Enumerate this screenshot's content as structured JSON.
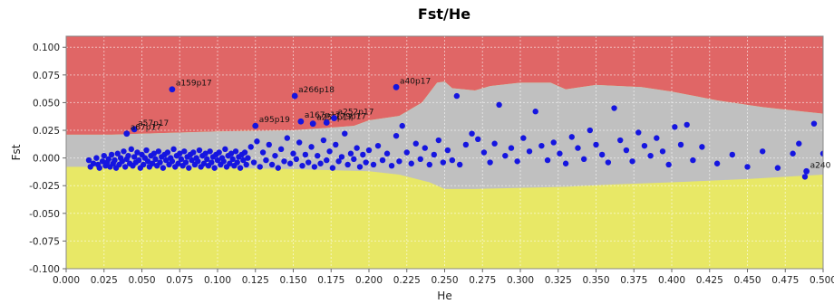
{
  "chart_data": {
    "type": "scatter",
    "title": "Fst/He",
    "xlabel": "He",
    "ylabel": "Fst",
    "xlim": [
      0.0,
      0.5
    ],
    "ylim": [
      -0.1,
      0.11
    ],
    "x_ticks": [
      "0.000",
      "0.025",
      "0.050",
      "0.075",
      "0.100",
      "0.125",
      "0.150",
      "0.175",
      "0.200",
      "0.225",
      "0.250",
      "0.275",
      "0.300",
      "0.325",
      "0.350",
      "0.375",
      "0.400",
      "0.425",
      "0.450",
      "0.475",
      "0.500"
    ],
    "y_ticks": [
      "-0.100",
      "-0.075",
      "-0.050",
      "-0.025",
      "0.000",
      "0.025",
      "0.050",
      "0.075",
      "0.100"
    ],
    "grid": true,
    "colors": {
      "upper_region": "#e06666",
      "neutral_region": "#c0c0c0",
      "lower_region": "#e8e866",
      "points": "#1515e0"
    },
    "upper_boundary": [
      [
        0.0,
        0.021
      ],
      [
        0.03,
        0.021
      ],
      [
        0.05,
        0.022
      ],
      [
        0.1,
        0.024
      ],
      [
        0.15,
        0.025
      ],
      [
        0.17,
        0.027
      ],
      [
        0.19,
        0.029
      ],
      [
        0.2,
        0.034
      ],
      [
        0.22,
        0.038
      ],
      [
        0.235,
        0.05
      ],
      [
        0.245,
        0.068
      ],
      [
        0.25,
        0.069
      ],
      [
        0.255,
        0.063
      ],
      [
        0.27,
        0.061
      ],
      [
        0.28,
        0.065
      ],
      [
        0.3,
        0.068
      ],
      [
        0.32,
        0.068
      ],
      [
        0.33,
        0.062
      ],
      [
        0.35,
        0.066
      ],
      [
        0.38,
        0.064
      ],
      [
        0.4,
        0.06
      ],
      [
        0.43,
        0.052
      ],
      [
        0.46,
        0.046
      ],
      [
        0.5,
        0.04
      ]
    ],
    "lower_boundary": [
      [
        0.0,
        -0.008
      ],
      [
        0.05,
        -0.008
      ],
      [
        0.1,
        -0.009
      ],
      [
        0.15,
        -0.01
      ],
      [
        0.2,
        -0.012
      ],
      [
        0.22,
        -0.015
      ],
      [
        0.24,
        -0.022
      ],
      [
        0.25,
        -0.028
      ],
      [
        0.27,
        -0.028
      ],
      [
        0.3,
        -0.027
      ],
      [
        0.33,
        -0.026
      ],
      [
        0.36,
        -0.024
      ],
      [
        0.4,
        -0.022
      ],
      [
        0.45,
        -0.019
      ],
      [
        0.5,
        -0.015
      ]
    ],
    "labeled_points": [
      {
        "x": 0.07,
        "y": 0.062,
        "label": "a159p17"
      },
      {
        "x": 0.151,
        "y": 0.056,
        "label": "a266p18"
      },
      {
        "x": 0.218,
        "y": 0.064,
        "label": "a40p17"
      },
      {
        "x": 0.045,
        "y": 0.026,
        "label": "a57p17"
      },
      {
        "x": 0.04,
        "y": 0.022,
        "label": "a67p17"
      },
      {
        "x": 0.125,
        "y": 0.029,
        "label": "a95p19"
      },
      {
        "x": 0.155,
        "y": 0.033,
        "label": "a167p17"
      },
      {
        "x": 0.163,
        "y": 0.031,
        "label": "a256p17"
      },
      {
        "x": 0.172,
        "y": 0.032,
        "label": "a179p17"
      },
      {
        "x": 0.177,
        "y": 0.036,
        "label": "a252p17"
      },
      {
        "x": 0.489,
        "y": -0.012,
        "label": "a240"
      }
    ],
    "points": [
      [
        0.015,
        -0.002
      ],
      [
        0.016,
        -0.008
      ],
      [
        0.018,
        -0.005
      ],
      [
        0.02,
        0.0
      ],
      [
        0.021,
        -0.006
      ],
      [
        0.022,
        -0.009
      ],
      [
        0.024,
        -0.003
      ],
      [
        0.025,
        0.002
      ],
      [
        0.026,
        -0.007
      ],
      [
        0.027,
        -0.004
      ],
      [
        0.028,
        -0.001
      ],
      [
        0.029,
        -0.008
      ],
      [
        0.03,
        0.003
      ],
      [
        0.031,
        -0.005
      ],
      [
        0.032,
        -0.002
      ],
      [
        0.033,
        -0.009
      ],
      [
        0.034,
        0.004
      ],
      [
        0.035,
        -0.006
      ],
      [
        0.036,
        0.0
      ],
      [
        0.037,
        -0.003
      ],
      [
        0.038,
        0.006
      ],
      [
        0.039,
        -0.008
      ],
      [
        0.04,
        -0.001
      ],
      [
        0.041,
        0.002
      ],
      [
        0.042,
        -0.005
      ],
      [
        0.043,
        0.008
      ],
      [
        0.044,
        -0.007
      ],
      [
        0.045,
        0.001
      ],
      [
        0.046,
        -0.004
      ],
      [
        0.047,
        0.005
      ],
      [
        0.048,
        -0.002
      ],
      [
        0.049,
        -0.009
      ],
      [
        0.05,
        0.003
      ],
      [
        0.051,
        -0.006
      ],
      [
        0.052,
        0.0
      ],
      [
        0.053,
        0.007
      ],
      [
        0.054,
        -0.003
      ],
      [
        0.055,
        -0.008
      ],
      [
        0.056,
        0.002
      ],
      [
        0.057,
        -0.005
      ],
      [
        0.058,
        0.004
      ],
      [
        0.059,
        -0.001
      ],
      [
        0.06,
        -0.007
      ],
      [
        0.061,
        0.006
      ],
      [
        0.062,
        -0.004
      ],
      [
        0.063,
        0.001
      ],
      [
        0.064,
        -0.009
      ],
      [
        0.065,
        0.003
      ],
      [
        0.066,
        -0.002
      ],
      [
        0.067,
        0.005
      ],
      [
        0.068,
        -0.006
      ],
      [
        0.069,
        0.0
      ],
      [
        0.07,
        -0.003
      ],
      [
        0.071,
        0.008
      ],
      [
        0.072,
        -0.008
      ],
      [
        0.073,
        0.002
      ],
      [
        0.074,
        -0.005
      ],
      [
        0.075,
        0.004
      ],
      [
        0.076,
        -0.001
      ],
      [
        0.077,
        -0.007
      ],
      [
        0.078,
        0.006
      ],
      [
        0.079,
        -0.004
      ],
      [
        0.08,
        0.001
      ],
      [
        0.081,
        -0.009
      ],
      [
        0.082,
        0.003
      ],
      [
        0.083,
        -0.002
      ],
      [
        0.084,
        0.005
      ],
      [
        0.085,
        -0.006
      ],
      [
        0.086,
        0.0
      ],
      [
        0.087,
        -0.003
      ],
      [
        0.088,
        0.007
      ],
      [
        0.089,
        -0.008
      ],
      [
        0.09,
        0.002
      ],
      [
        0.091,
        -0.005
      ],
      [
        0.092,
        0.004
      ],
      [
        0.093,
        -0.001
      ],
      [
        0.094,
        -0.007
      ],
      [
        0.095,
        0.006
      ],
      [
        0.096,
        -0.004
      ],
      [
        0.097,
        0.001
      ],
      [
        0.098,
        -0.009
      ],
      [
        0.099,
        0.003
      ],
      [
        0.1,
        -0.002
      ],
      [
        0.101,
        0.005
      ],
      [
        0.102,
        -0.006
      ],
      [
        0.103,
        0.0
      ],
      [
        0.104,
        -0.003
      ],
      [
        0.105,
        0.008
      ],
      [
        0.106,
        -0.008
      ],
      [
        0.107,
        0.002
      ],
      [
        0.108,
        -0.005
      ],
      [
        0.109,
        0.004
      ],
      [
        0.11,
        -0.001
      ],
      [
        0.111,
        -0.007
      ],
      [
        0.112,
        0.006
      ],
      [
        0.113,
        -0.004
      ],
      [
        0.114,
        0.001
      ],
      [
        0.115,
        -0.009
      ],
      [
        0.116,
        0.003
      ],
      [
        0.117,
        -0.002
      ],
      [
        0.118,
        0.005
      ],
      [
        0.119,
        -0.006
      ],
      [
        0.12,
        0.0
      ],
      [
        0.122,
        0.01
      ],
      [
        0.124,
        -0.004
      ],
      [
        0.126,
        0.015
      ],
      [
        0.128,
        -0.008
      ],
      [
        0.13,
        0.005
      ],
      [
        0.132,
        -0.002
      ],
      [
        0.134,
        0.012
      ],
      [
        0.136,
        -0.006
      ],
      [
        0.138,
        0.002
      ],
      [
        0.14,
        -0.009
      ],
      [
        0.142,
        0.008
      ],
      [
        0.144,
        -0.003
      ],
      [
        0.146,
        0.018
      ],
      [
        0.148,
        -0.005
      ],
      [
        0.15,
        0.004
      ],
      [
        0.152,
        -0.001
      ],
      [
        0.154,
        0.014
      ],
      [
        0.156,
        -0.007
      ],
      [
        0.158,
        0.003
      ],
      [
        0.16,
        -0.004
      ],
      [
        0.162,
        0.01
      ],
      [
        0.164,
        -0.008
      ],
      [
        0.166,
        0.002
      ],
      [
        0.168,
        -0.005
      ],
      [
        0.17,
        0.016
      ],
      [
        0.172,
        -0.002
      ],
      [
        0.174,
        0.006
      ],
      [
        0.176,
        -0.009
      ],
      [
        0.178,
        0.012
      ],
      [
        0.18,
        -0.003
      ],
      [
        0.182,
        0.001
      ],
      [
        0.184,
        0.022
      ],
      [
        0.186,
        -0.006
      ],
      [
        0.188,
        0.004
      ],
      [
        0.19,
        -0.001
      ],
      [
        0.192,
        0.009
      ],
      [
        0.194,
        -0.008
      ],
      [
        0.196,
        0.003
      ],
      [
        0.198,
        -0.004
      ],
      [
        0.2,
        0.007
      ],
      [
        0.203,
        -0.006
      ],
      [
        0.206,
        0.011
      ],
      [
        0.209,
        -0.002
      ],
      [
        0.212,
        0.004
      ],
      [
        0.215,
        -0.007
      ],
      [
        0.218,
        0.02
      ],
      [
        0.22,
        -0.003
      ],
      [
        0.222,
        0.029
      ],
      [
        0.225,
        0.005
      ],
      [
        0.228,
        -0.005
      ],
      [
        0.231,
        0.013
      ],
      [
        0.234,
        -0.001
      ],
      [
        0.237,
        0.009
      ],
      [
        0.24,
        -0.006
      ],
      [
        0.243,
        0.003
      ],
      [
        0.246,
        0.016
      ],
      [
        0.249,
        -0.004
      ],
      [
        0.252,
        0.007
      ],
      [
        0.255,
        -0.002
      ],
      [
        0.258,
        0.056
      ],
      [
        0.26,
        -0.006
      ],
      [
        0.264,
        0.012
      ],
      [
        0.268,
        0.022
      ],
      [
        0.272,
        0.017
      ],
      [
        0.276,
        0.005
      ],
      [
        0.28,
        -0.004
      ],
      [
        0.283,
        0.013
      ],
      [
        0.286,
        0.048
      ],
      [
        0.29,
        0.002
      ],
      [
        0.294,
        0.009
      ],
      [
        0.298,
        -0.003
      ],
      [
        0.302,
        0.018
      ],
      [
        0.306,
        0.006
      ],
      [
        0.31,
        0.042
      ],
      [
        0.314,
        0.011
      ],
      [
        0.318,
        -0.002
      ],
      [
        0.322,
        0.014
      ],
      [
        0.326,
        0.004
      ],
      [
        0.33,
        -0.005
      ],
      [
        0.334,
        0.019
      ],
      [
        0.338,
        0.009
      ],
      [
        0.342,
        -0.001
      ],
      [
        0.346,
        0.025
      ],
      [
        0.35,
        0.012
      ],
      [
        0.354,
        0.003
      ],
      [
        0.358,
        -0.004
      ],
      [
        0.362,
        0.045
      ],
      [
        0.366,
        0.016
      ],
      [
        0.37,
        0.007
      ],
      [
        0.374,
        -0.003
      ],
      [
        0.378,
        0.023
      ],
      [
        0.382,
        0.011
      ],
      [
        0.386,
        0.002
      ],
      [
        0.39,
        0.018
      ],
      [
        0.394,
        0.006
      ],
      [
        0.398,
        -0.006
      ],
      [
        0.402,
        0.028
      ],
      [
        0.406,
        0.012
      ],
      [
        0.41,
        0.03
      ],
      [
        0.414,
        -0.002
      ],
      [
        0.42,
        0.01
      ],
      [
        0.43,
        -0.005
      ],
      [
        0.44,
        0.003
      ],
      [
        0.45,
        -0.008
      ],
      [
        0.46,
        0.006
      ],
      [
        0.47,
        -0.009
      ],
      [
        0.48,
        0.004
      ],
      [
        0.484,
        0.013
      ],
      [
        0.488,
        -0.017
      ],
      [
        0.494,
        0.031
      ],
      [
        0.5,
        0.004
      ]
    ]
  }
}
